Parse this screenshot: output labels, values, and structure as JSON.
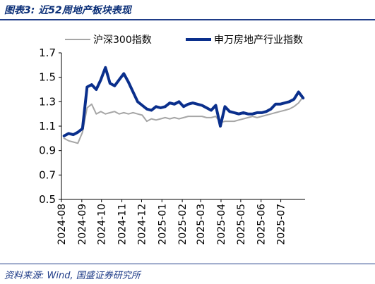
{
  "header": {
    "title": "图表3: 近52周地产板块表现"
  },
  "footer": {
    "source": "资料来源: Wind, 国盛证券研究所"
  },
  "chart_data": {
    "type": "line",
    "title": "",
    "xlabel": "",
    "ylabel": "",
    "ylim": [
      0.5,
      1.7
    ],
    "yticks": [
      "0.5",
      "0.7",
      "0.9",
      "1.1",
      "1.3",
      "1.5",
      "1.7"
    ],
    "x_ticks": [
      "2024-08",
      "2024-09",
      "2024-10",
      "2024-11",
      "2024-12",
      "2025-01",
      "2025-02",
      "2025-03",
      "2025-04",
      "2025-05",
      "2025-06",
      "2025-07"
    ],
    "x": [
      "2024-08-05",
      "2024-08-12",
      "2024-08-19",
      "2024-08-26",
      "2024-09-02",
      "2024-09-09",
      "2024-09-16",
      "2024-09-23",
      "2024-09-30",
      "2024-10-07",
      "2024-10-14",
      "2024-10-21",
      "2024-10-28",
      "2024-11-04",
      "2024-11-11",
      "2024-11-18",
      "2024-11-25",
      "2024-12-02",
      "2024-12-09",
      "2024-12-16",
      "2024-12-23",
      "2024-12-30",
      "2025-01-06",
      "2025-01-13",
      "2025-01-20",
      "2025-01-27",
      "2025-02-03",
      "2025-02-10",
      "2025-02-17",
      "2025-02-24",
      "2025-03-03",
      "2025-03-10",
      "2025-03-17",
      "2025-03-24",
      "2025-03-31",
      "2025-04-07",
      "2025-04-14",
      "2025-04-21",
      "2025-04-28",
      "2025-05-05",
      "2025-05-12",
      "2025-05-19",
      "2025-05-26",
      "2025-06-02",
      "2025-06-09",
      "2025-06-16",
      "2025-06-23",
      "2025-06-30",
      "2025-07-07",
      "2025-07-14",
      "2025-07-21",
      "2025-07-28",
      "2025-08-04"
    ],
    "legend_position": "top",
    "grid": false,
    "series": [
      {
        "name": "沪深300指数",
        "color": "#a6a6a6",
        "values": [
          1.0,
          0.98,
          0.97,
          0.96,
          1.05,
          1.25,
          1.28,
          1.2,
          1.22,
          1.2,
          1.21,
          1.22,
          1.2,
          1.21,
          1.2,
          1.21,
          1.2,
          1.19,
          1.14,
          1.16,
          1.15,
          1.16,
          1.17,
          1.16,
          1.17,
          1.16,
          1.17,
          1.18,
          1.18,
          1.18,
          1.18,
          1.17,
          1.17,
          1.18,
          1.13,
          1.14,
          1.14,
          1.14,
          1.15,
          1.16,
          1.17,
          1.18,
          1.17,
          1.18,
          1.19,
          1.2,
          1.21,
          1.22,
          1.23,
          1.24,
          1.26,
          1.29,
          1.34
        ]
      },
      {
        "name": "申万房地产行业指数",
        "color": "#0a2f8c",
        "values": [
          1.02,
          1.04,
          1.03,
          1.05,
          1.08,
          1.42,
          1.44,
          1.4,
          1.48,
          1.58,
          1.45,
          1.43,
          1.48,
          1.53,
          1.46,
          1.38,
          1.3,
          1.27,
          1.24,
          1.23,
          1.26,
          1.25,
          1.26,
          1.29,
          1.28,
          1.3,
          1.26,
          1.28,
          1.29,
          1.28,
          1.27,
          1.25,
          1.23,
          1.27,
          1.1,
          1.26,
          1.22,
          1.21,
          1.2,
          1.21,
          1.2,
          1.2,
          1.21,
          1.21,
          1.22,
          1.24,
          1.28,
          1.28,
          1.29,
          1.3,
          1.32,
          1.38,
          1.33
        ]
      }
    ]
  }
}
